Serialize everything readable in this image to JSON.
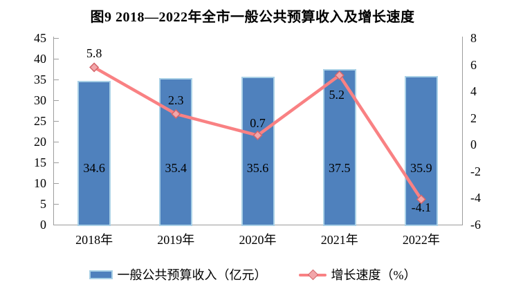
{
  "title": "图9  2018—2022年全市一般公共预算收入及增长速度",
  "chart_data": {
    "type": "bar+line",
    "title": "图9  2018—2022年全市一般公共预算收入及增长速度",
    "categories": [
      "2018年",
      "2019年",
      "2020年",
      "2021年",
      "2022年"
    ],
    "series": [
      {
        "name": "一般公共预算收入（亿元）",
        "type": "bar",
        "axis": "left",
        "values": [
          34.6,
          35.4,
          35.6,
          37.5,
          35.9
        ],
        "labels": [
          "34.6",
          "35.4",
          "35.6",
          "37.5",
          "35.9"
        ],
        "color": "#4F81BD",
        "border_color": "#A9D0E6"
      },
      {
        "name": "增长速度（%）",
        "type": "line",
        "axis": "right",
        "values": [
          5.8,
          2.3,
          0.7,
          5.2,
          -4.1
        ],
        "labels": [
          "5.8",
          "2.3",
          "0.7",
          "5.2",
          "-4.1"
        ],
        "label_positions": [
          "above",
          "above",
          "above",
          "below",
          "below"
        ],
        "color": "#F98183",
        "marker": "diamond",
        "marker_fill": "#F2A6AA",
        "marker_stroke": "#D4666B"
      }
    ],
    "left_axis": {
      "min": 0,
      "max": 45,
      "step": 5,
      "ticks": [
        "0",
        "5",
        "10",
        "15",
        "20",
        "25",
        "30",
        "35",
        "40",
        "45"
      ]
    },
    "right_axis": {
      "min": -6,
      "max": 8,
      "step": 2,
      "ticks": [
        "-6",
        "-4",
        "-2",
        "0",
        "2",
        "4",
        "6",
        "8"
      ]
    },
    "grid": false,
    "legend_position": "bottom",
    "axis_color": "#9C9C9C",
    "text_color": "#000000"
  },
  "legend": {
    "items": [
      {
        "label": "一般公共预算收入（亿元）",
        "swatch": "bar"
      },
      {
        "label": "增长速度（%）",
        "swatch": "line-diamond"
      }
    ]
  }
}
